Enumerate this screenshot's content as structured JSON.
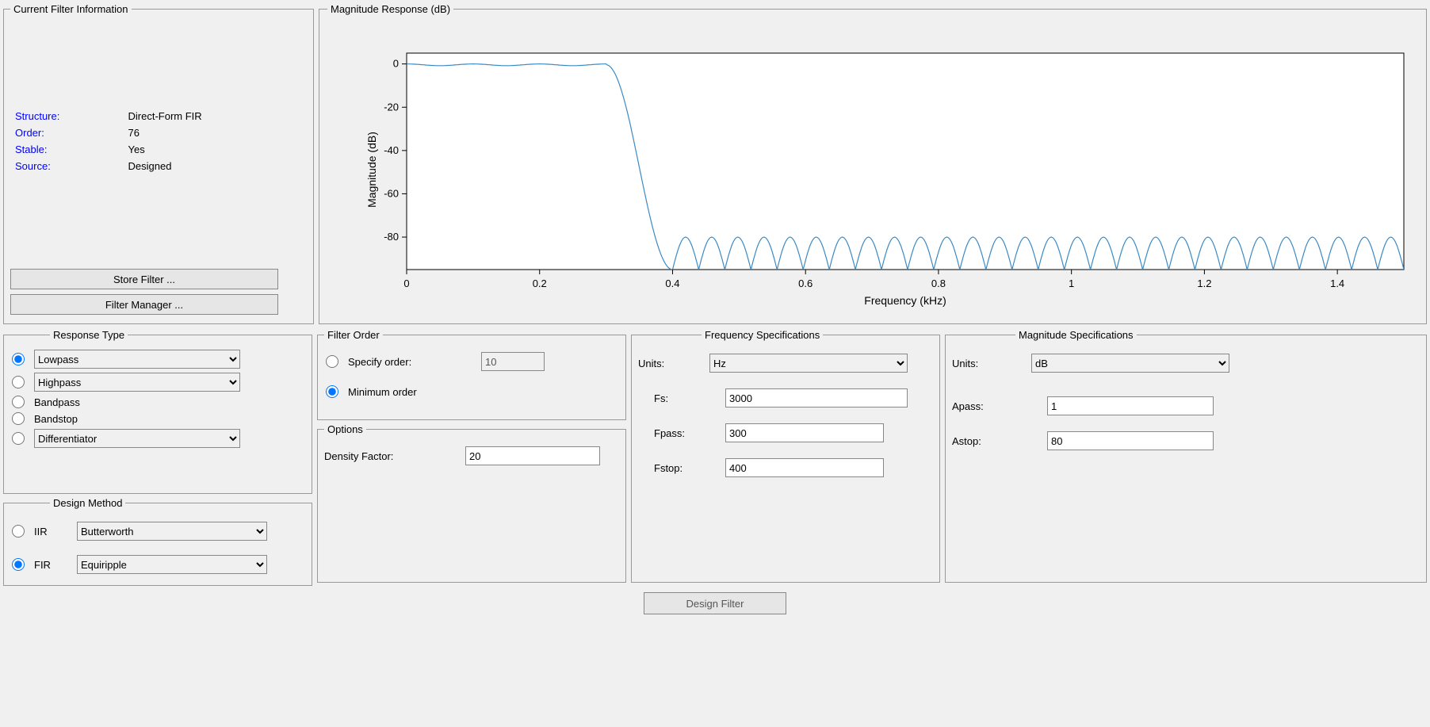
{
  "filter_info": {
    "legend": "Current Filter Information",
    "structure_label": "Structure:",
    "structure_value": "Direct-Form FIR",
    "order_label": "Order:",
    "order_value": "76",
    "stable_label": "Stable:",
    "stable_value": "Yes",
    "source_label": "Source:",
    "source_value": "Designed",
    "store_btn": "Store Filter ...",
    "manager_btn": "Filter Manager ..."
  },
  "magresp": {
    "legend": "Magnitude Response (dB)",
    "y_label": "Magnitude (dB)",
    "x_label": "Frequency (kHz)",
    "plot": {
      "type": "line",
      "background_color": "#ffffff",
      "grid_color": "#dcdcdc",
      "axis_color": "#000000",
      "line_color": "#3b8ac4",
      "line_width": 1.2,
      "xlim": [
        0,
        1.5
      ],
      "ylim": [
        -95,
        5
      ],
      "x_ticks": [
        0,
        0.2,
        0.4,
        0.6,
        0.8,
        1.0,
        1.2,
        1.4
      ],
      "x_tick_labels": [
        "0",
        "0.2",
        "0.4",
        "0.6",
        "0.8",
        "1",
        "1.2",
        "1.4"
      ],
      "y_ticks": [
        0,
        -20,
        -40,
        -60,
        -80
      ],
      "y_tick_labels": [
        "0",
        "-20",
        "-40",
        "-60",
        "-80"
      ],
      "tick_fontsize": 13,
      "label_fontsize": 14,
      "passband_end": 0.3,
      "transition_end": 0.4,
      "stopband_peak_db": -80,
      "stopband_trough_db": -95,
      "passband_ripple_db": 0.8,
      "num_stopband_lobes": 28
    }
  },
  "response_type": {
    "legend": "Response Type",
    "lowpass": "Lowpass",
    "highpass": "Highpass",
    "bandpass": "Bandpass",
    "bandstop": "Bandstop",
    "differentiator": "Differentiator",
    "selected": "lowpass"
  },
  "design_method": {
    "legend": "Design Method",
    "iir_label": "IIR",
    "iir_sel": "Butterworth",
    "fir_label": "FIR",
    "fir_sel": "Equiripple",
    "selected": "fir"
  },
  "filter_order": {
    "legend": "Filter Order",
    "specify_label": "Specify order:",
    "specify_value": "10",
    "min_label": "Minimum order",
    "selected": "min"
  },
  "options": {
    "legend": "Options",
    "density_label": "Density Factor:",
    "density_value": "20"
  },
  "freq_spec": {
    "legend": "Frequency Specifications",
    "units_label": "Units:",
    "units_value": "Hz",
    "fs_label": "Fs:",
    "fs_value": "3000",
    "fpass_label": "Fpass:",
    "fpass_value": "300",
    "fstop_label": "Fstop:",
    "fstop_value": "400"
  },
  "mag_spec": {
    "legend": "Magnitude Specifications",
    "units_label": "Units:",
    "units_value": "dB",
    "apass_label": "Apass:",
    "apass_value": "1",
    "astop_label": "Astop:",
    "astop_value": "80"
  },
  "design_btn": "Design Filter"
}
